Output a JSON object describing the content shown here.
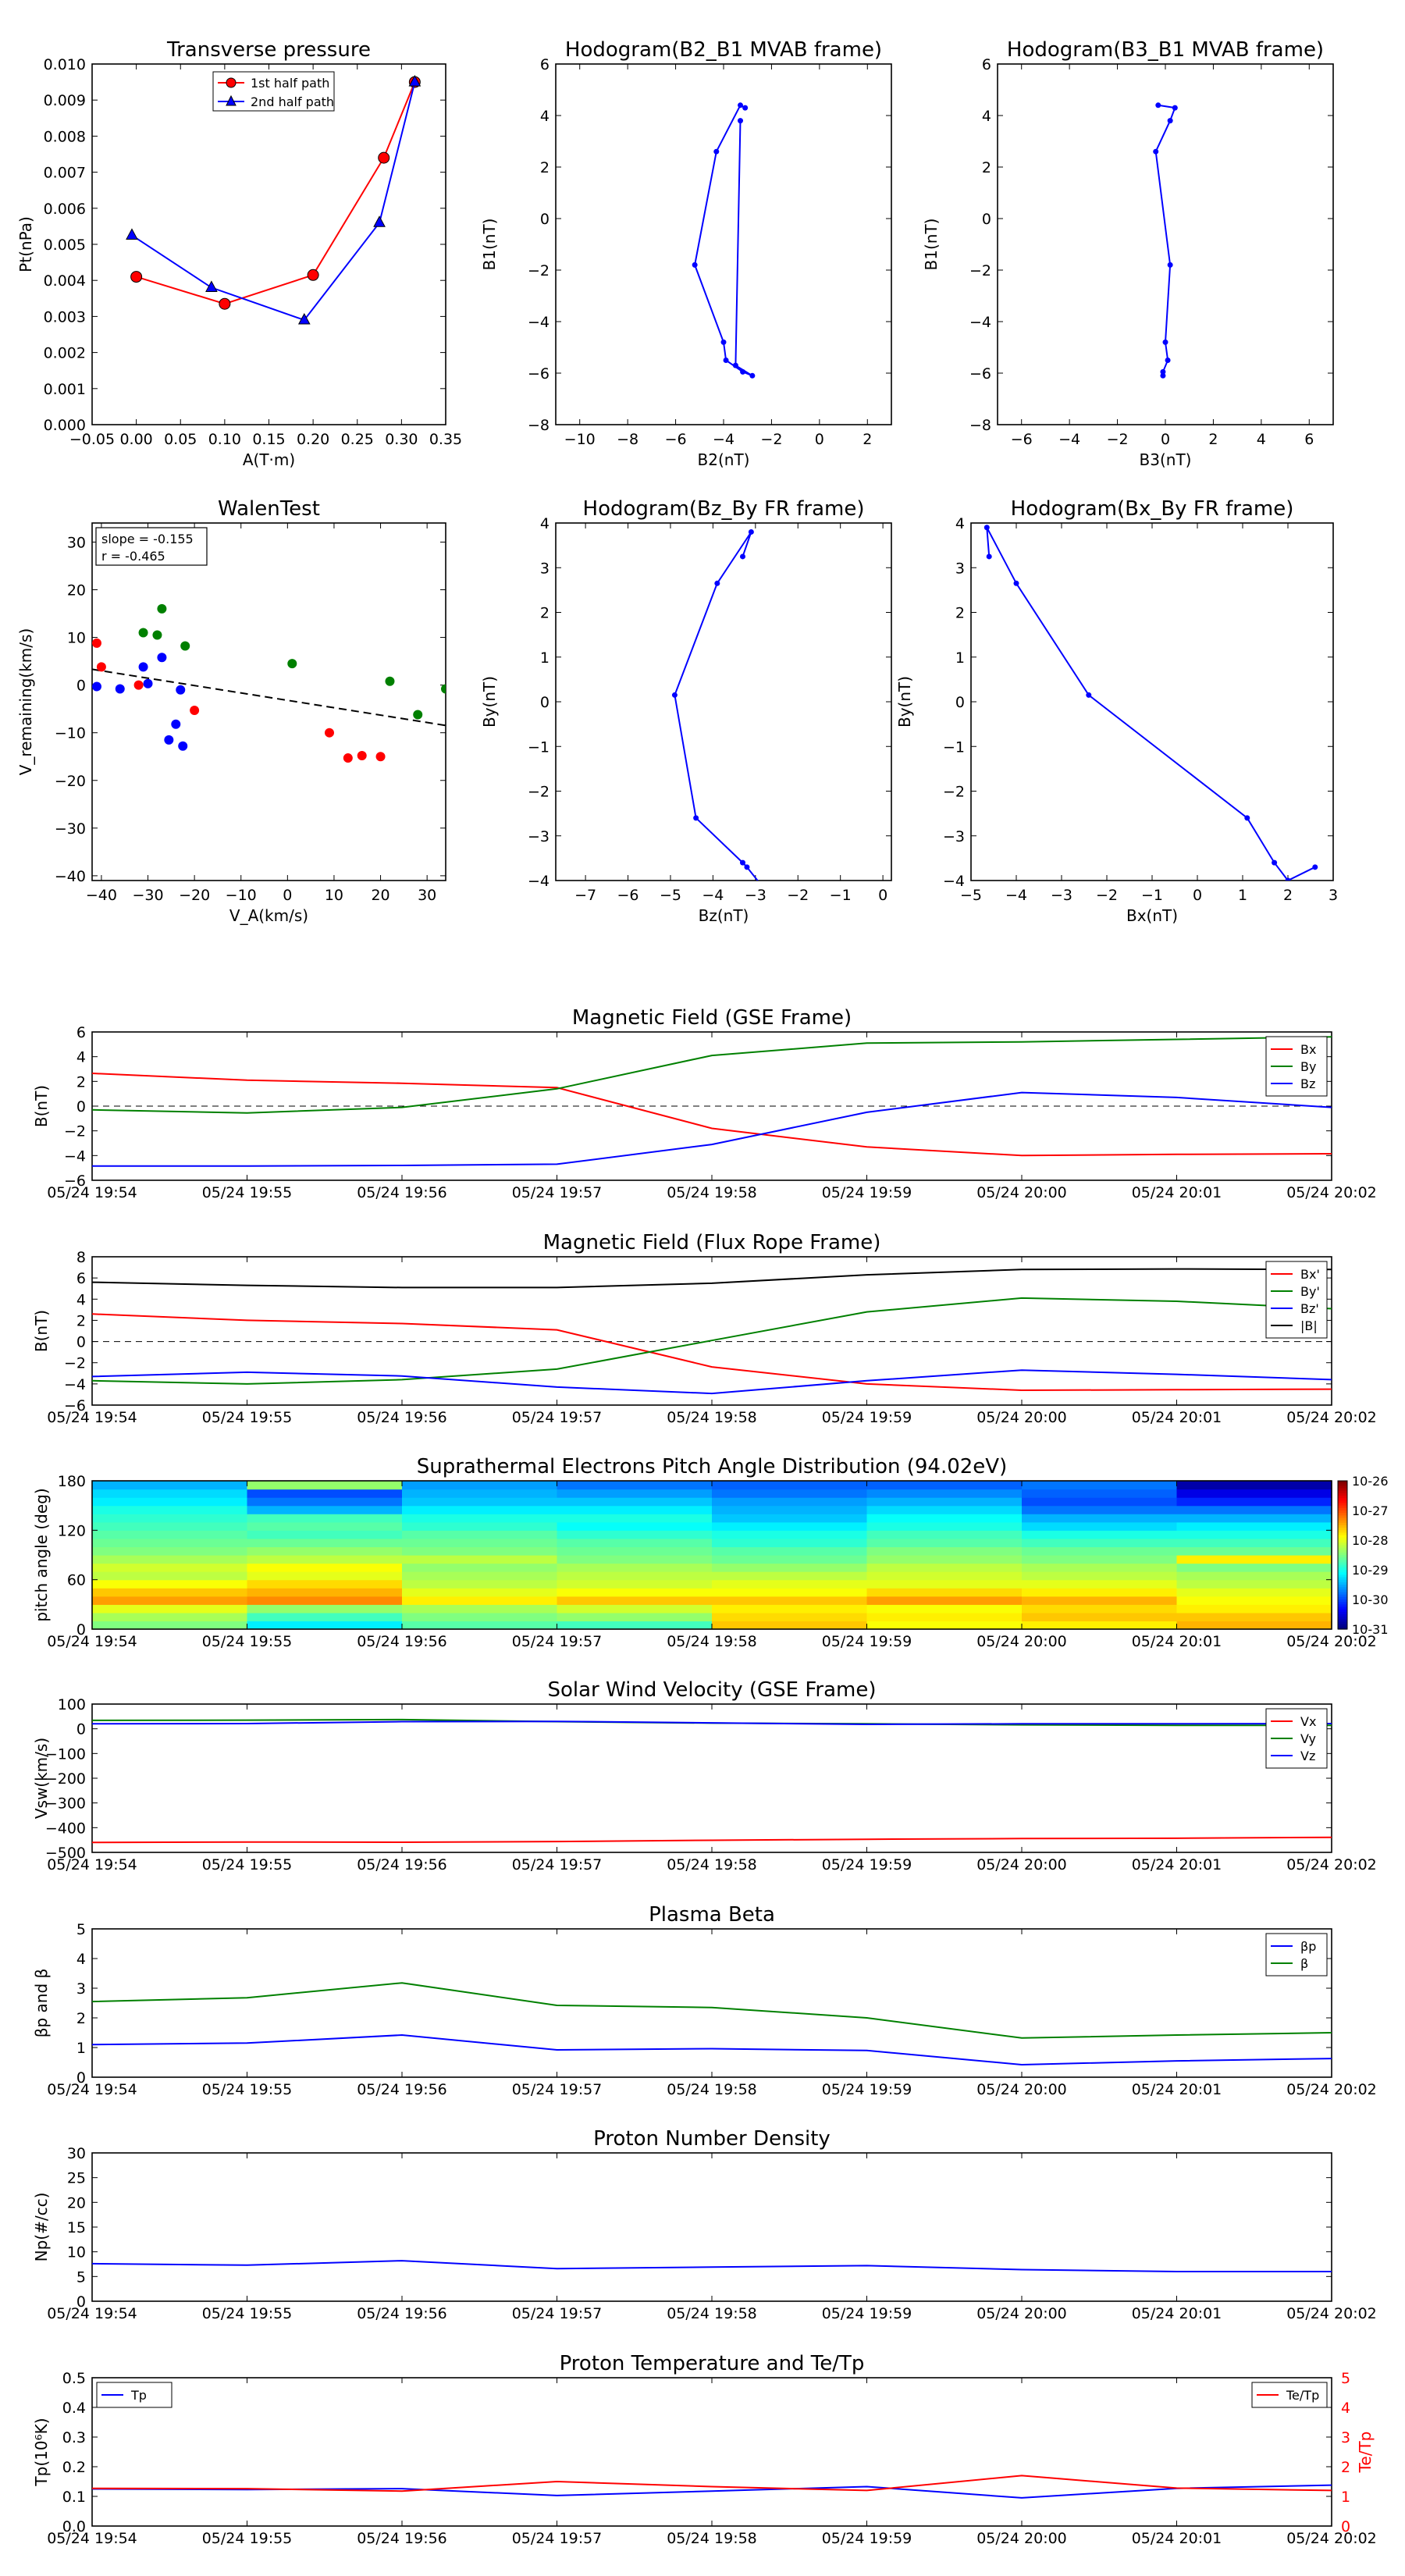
{
  "colors": {
    "red": "#ff0000",
    "green": "#008000",
    "blue": "#0000ff",
    "black": "#000000"
  },
  "chart_data": [
    {
      "id": "transverse-pressure",
      "type": "line",
      "title": "Transverse pressure",
      "xlabel": "A(T·m)",
      "ylabel": "Pt(nPa)",
      "xlim": [
        -0.05,
        0.35
      ],
      "ylim": [
        0.0,
        0.01
      ],
      "xticks": [
        "−0.05",
        "0.00",
        "0.05",
        "0.10",
        "0.15",
        "0.20",
        "0.25",
        "0.30",
        "0.35"
      ],
      "yticks": [
        "0.000",
        "0.001",
        "0.002",
        "0.003",
        "0.004",
        "0.005",
        "0.006",
        "0.007",
        "0.008",
        "0.009",
        "0.010"
      ],
      "legend": "top-center",
      "series": [
        {
          "name": "1st half path",
          "color": "#ff0000",
          "marker": "circle",
          "x": [
            0.0,
            0.1,
            0.2,
            0.28,
            0.315
          ],
          "y": [
            0.0041,
            0.00335,
            0.00415,
            0.0074,
            0.0095
          ]
        },
        {
          "name": "2nd half path",
          "color": "#0000ff",
          "marker": "triangle",
          "x": [
            -0.005,
            0.085,
            0.19,
            0.275,
            0.315
          ],
          "y": [
            0.00525,
            0.0038,
            0.0029,
            0.0056,
            0.0095
          ]
        }
      ]
    },
    {
      "id": "hodogram-b2-b1",
      "type": "line",
      "title": "Hodogram(B2_B1 MVAB frame)",
      "xlabel": "B2(nT)",
      "ylabel": "B1(nT)",
      "xlim": [
        -11,
        3
      ],
      "ylim": [
        -8,
        6
      ],
      "xticks": [
        "−10",
        "−8",
        "−6",
        "−4",
        "−2",
        "0",
        "2"
      ],
      "yticks": [
        "−8",
        "−6",
        "−4",
        "−2",
        "0",
        "2",
        "4",
        "6"
      ],
      "series": [
        {
          "color": "#0000ff",
          "x": [
            -3.1,
            -3.3,
            -4.3,
            -5.2,
            -4.0,
            -3.9,
            -3.2,
            -2.8,
            -3.5,
            -3.3
          ],
          "y": [
            4.3,
            4.4,
            2.6,
            -1.8,
            -4.8,
            -5.5,
            -5.95,
            -6.1,
            -5.7,
            3.8
          ]
        }
      ]
    },
    {
      "id": "hodogram-b3-b1",
      "type": "line",
      "title": "Hodogram(B3_B1 MVAB frame)",
      "xlabel": "B3(nT)",
      "ylabel": "B1(nT)",
      "xlim": [
        -7,
        7
      ],
      "ylim": [
        -8,
        6
      ],
      "xticks": [
        "−6",
        "−4",
        "−2",
        "0",
        "2",
        "4",
        "6"
      ],
      "yticks": [
        "−8",
        "−6",
        "−4",
        "−2",
        "0",
        "2",
        "4",
        "6"
      ],
      "series": [
        {
          "color": "#0000ff",
          "x": [
            -0.3,
            0.4,
            0.2,
            -0.4,
            0.2,
            0.0,
            0.1,
            -0.1,
            -0.1
          ],
          "y": [
            4.4,
            4.3,
            3.8,
            2.6,
            -1.8,
            -4.8,
            -5.5,
            -5.95,
            -6.1
          ]
        }
      ]
    },
    {
      "id": "walen-test",
      "type": "scatter",
      "title": "WalenTest",
      "xlabel": "V_A(km/s)",
      "ylabel": "V_remaining(km/s)",
      "xlim": [
        -42,
        34
      ],
      "ylim": [
        -41,
        34
      ],
      "xticks": [
        "−40",
        "−30",
        "−20",
        "−10",
        "0",
        "10",
        "20",
        "30"
      ],
      "yticks": [
        "−40",
        "−30",
        "−20",
        "−10",
        "0",
        "10",
        "20",
        "30"
      ],
      "annotation": [
        "slope = -0.155",
        "r = -0.465"
      ],
      "fit": {
        "slope": -0.155,
        "intercept": -3.2
      },
      "series": [
        {
          "color": "#008000",
          "x": [
            -27,
            -31,
            -28,
            -22,
            1,
            22,
            28,
            34
          ],
          "y": [
            16,
            11,
            10.5,
            8.2,
            4.5,
            0.8,
            -6.2,
            -0.8
          ]
        },
        {
          "color": "#0000ff",
          "x": [
            -41,
            -36,
            -31,
            -30,
            -27,
            -23,
            -24,
            -22.5,
            -25.5
          ],
          "y": [
            -0.3,
            -0.8,
            3.8,
            0.3,
            5.8,
            -1.0,
            -8.2,
            -12.8,
            -11.5
          ]
        },
        {
          "color": "#ff0000",
          "x": [
            -41,
            -40,
            -32,
            -20,
            9,
            13,
            16,
            20
          ],
          "y": [
            8.8,
            3.8,
            0.0,
            -5.3,
            -10.0,
            -15.3,
            -14.8,
            -15.0
          ]
        }
      ]
    },
    {
      "id": "hodogram-bz-by",
      "type": "line",
      "title": "Hodogram(Bz_By FR frame)",
      "xlabel": "Bz(nT)",
      "ylabel": "By(nT)",
      "xlim": [
        -7.7,
        0.2
      ],
      "ylim": [
        -4,
        4
      ],
      "xticks": [
        "−7",
        "−6",
        "−5",
        "−4",
        "−3",
        "−2",
        "−1",
        "0"
      ],
      "yticks": [
        "−4",
        "−3",
        "−2",
        "−1",
        "0",
        "1",
        "2",
        "3",
        "4"
      ],
      "series": [
        {
          "color": "#0000ff",
          "x": [
            -3.3,
            -3.1,
            -3.9,
            -4.9,
            -4.4,
            -3.3,
            -3.2,
            -2.7
          ],
          "y": [
            3.25,
            3.8,
            2.65,
            0.15,
            -2.6,
            -3.6,
            -3.7,
            -4.3
          ]
        }
      ]
    },
    {
      "id": "hodogram-bx-by",
      "type": "line",
      "title": "Hodogram(Bx_By FR frame)",
      "xlabel": "Bx(nT)",
      "ylabel": "By(nT)",
      "xlim": [
        -5,
        3
      ],
      "ylim": [
        -4,
        4
      ],
      "xticks": [
        "−5",
        "−4",
        "−3",
        "−2",
        "−1",
        "0",
        "1",
        "2",
        "3"
      ],
      "yticks": [
        "−4",
        "−3",
        "−2",
        "−1",
        "0",
        "1",
        "2",
        "3",
        "4"
      ],
      "series": [
        {
          "color": "#0000ff",
          "x": [
            -4.6,
            -4.65,
            -4.0,
            -2.4,
            1.1,
            1.7,
            2.0,
            2.6
          ],
          "y": [
            3.25,
            3.9,
            2.65,
            0.15,
            -2.6,
            -3.6,
            -4.0,
            -3.7
          ]
        }
      ]
    },
    {
      "id": "magnetic-field-gse",
      "type": "line",
      "title": "Magnetic Field (GSE Frame)",
      "ylabel": "B(nT)",
      "ylim": [
        -6,
        6
      ],
      "zero_line": true,
      "legend": "top-right",
      "x": [
        "05/24 19:54",
        "05/24 19:55",
        "05/24 19:56",
        "05/24 19:57",
        "05/24 19:58",
        "05/24 19:59",
        "05/24 20:00",
        "05/24 20:01",
        "05/24 20:02"
      ],
      "yticks": [
        "−6",
        "−4",
        "−2",
        "0",
        "2",
        "4",
        "6"
      ],
      "series": [
        {
          "name": "Bx",
          "color": "#ff0000",
          "values": [
            2.65,
            2.1,
            1.85,
            1.5,
            -1.8,
            -3.3,
            -4.0,
            -3.9,
            -3.85
          ]
        },
        {
          "name": "By",
          "color": "#008000",
          "values": [
            -0.3,
            -0.55,
            -0.1,
            1.4,
            4.1,
            5.1,
            5.2,
            5.4,
            5.6
          ]
        },
        {
          "name": "Bz",
          "color": "#0000ff",
          "values": [
            -4.85,
            -4.85,
            -4.8,
            -4.7,
            -3.1,
            -0.5,
            1.1,
            0.7,
            -0.1
          ]
        }
      ]
    },
    {
      "id": "magnetic-field-fr",
      "type": "line",
      "title": "Magnetic Field (Flux Rope Frame)",
      "ylabel": "B(nT)",
      "ylim": [
        -6,
        8
      ],
      "zero_line": true,
      "legend": "top-right",
      "x": [
        "05/24 19:54",
        "05/24 19:55",
        "05/24 19:56",
        "05/24 19:57",
        "05/24 19:58",
        "05/24 19:59",
        "05/24 20:00",
        "05/24 20:01",
        "05/24 20:02"
      ],
      "yticks": [
        "−6",
        "−4",
        "−2",
        "0",
        "2",
        "4",
        "6",
        "8"
      ],
      "series": [
        {
          "name": "Bx'",
          "color": "#ff0000",
          "values": [
            2.6,
            2.0,
            1.7,
            1.1,
            -2.4,
            -4.0,
            -4.6,
            -4.55,
            -4.5
          ]
        },
        {
          "name": "By'",
          "color": "#008000",
          "values": [
            -3.7,
            -4.0,
            -3.6,
            -2.6,
            0.1,
            2.8,
            4.1,
            3.8,
            3.1
          ]
        },
        {
          "name": "Bz'",
          "color": "#0000ff",
          "values": [
            -3.3,
            -2.9,
            -3.25,
            -4.3,
            -4.9,
            -3.7,
            -2.7,
            -3.1,
            -3.6
          ]
        },
        {
          "name": "|B|",
          "color": "#000000",
          "values": [
            5.6,
            5.3,
            5.1,
            5.1,
            5.5,
            6.3,
            6.8,
            6.85,
            6.8
          ]
        }
      ]
    },
    {
      "id": "pitch-angle",
      "type": "heatmap",
      "title": "Suprathermal Electrons Pitch Angle Distribution (94.02eV)",
      "ylabel": "pitch angle (deg)",
      "ylim": [
        0,
        180
      ],
      "yticks": [
        "0",
        "60",
        "120",
        "180"
      ],
      "x": [
        "05/24 19:54",
        "05/24 19:55",
        "05/24 19:56",
        "05/24 19:57",
        "05/24 19:58",
        "05/24 19:59",
        "05/24 20:00",
        "05/24 20:01",
        "05/24 20:02"
      ],
      "colorbar": {
        "ticks": [
          "10-26",
          "10-27",
          "10-28",
          "10-29",
          "10-30",
          "10-31"
        ],
        "range": [
          -31,
          -26
        ],
        "scale": "log"
      },
      "columns_log10": [
        [
          -28.5,
          -28.3,
          -28.0,
          -27.4,
          -27.6,
          -27.9,
          -28.2,
          -28.1,
          -28.3,
          -28.5,
          -28.6,
          -28.7,
          -28.8,
          -28.9,
          -29.0,
          -29.2,
          -29.3,
          -29.5
        ],
        [
          -29.2,
          -28.8,
          -28.4,
          -27.3,
          -27.5,
          -27.7,
          -28.0,
          -27.9,
          -28.2,
          -28.4,
          -28.6,
          -28.8,
          -28.7,
          -28.8,
          -29.5,
          -29.8,
          -30.0,
          -28.4
        ],
        [
          -28.7,
          -28.5,
          -28.3,
          -27.8,
          -28.0,
          -28.2,
          -28.3,
          -28.4,
          -28.2,
          -28.5,
          -28.6,
          -28.7,
          -28.9,
          -29.0,
          -29.2,
          -29.4,
          -29.5,
          -29.6
        ],
        [
          -28.8,
          -28.4,
          -28.1,
          -27.6,
          -27.9,
          -28.1,
          -28.2,
          -28.3,
          -28.5,
          -28.6,
          -28.7,
          -28.9,
          -29.1,
          -29.0,
          -29.2,
          -29.4,
          -29.6,
          -29.8
        ],
        [
          -27.6,
          -27.7,
          -27.8,
          -27.6,
          -27.9,
          -28.0,
          -28.2,
          -28.4,
          -28.6,
          -28.7,
          -28.9,
          -29.0,
          -29.2,
          -29.4,
          -29.5,
          -29.6,
          -29.8,
          -29.9
        ],
        [
          -27.9,
          -27.8,
          -27.9,
          -27.4,
          -27.7,
          -28.0,
          -28.1,
          -28.2,
          -28.4,
          -28.5,
          -28.7,
          -28.8,
          -29.0,
          -29.1,
          -29.3,
          -29.5,
          -29.7,
          -29.9
        ],
        [
          -27.8,
          -27.6,
          -27.7,
          -27.5,
          -27.8,
          -28.0,
          -28.2,
          -28.3,
          -28.5,
          -28.6,
          -28.8,
          -29.0,
          -29.3,
          -29.5,
          -29.8,
          -30.0,
          -29.9,
          -29.8
        ],
        [
          -27.5,
          -27.6,
          -27.8,
          -27.9,
          -28.0,
          -28.2,
          -28.3,
          -28.5,
          -27.8,
          -28.6,
          -28.8,
          -29.0,
          -29.2,
          -29.5,
          -29.8,
          -30.2,
          -30.5,
          -30.8
        ]
      ]
    },
    {
      "id": "solar-wind-velocity",
      "type": "line",
      "title": "Solar Wind Velocity (GSE Frame)",
      "ylabel": "Vsw(km/s)",
      "ylim": [
        -500,
        100
      ],
      "legend": "top-right",
      "x": [
        "05/24 19:54",
        "05/24 19:55",
        "05/24 19:56",
        "05/24 19:57",
        "05/24 19:58",
        "05/24 19:59",
        "05/24 20:00",
        "05/24 20:01",
        "05/24 20:02"
      ],
      "yticks": [
        "−500",
        "−400",
        "−300",
        "−200",
        "−100",
        "0",
        "100"
      ],
      "series": [
        {
          "name": "Vx",
          "color": "#ff0000",
          "values": [
            -460,
            -458,
            -459,
            -456,
            -451,
            -447,
            -444,
            -443,
            -439
          ]
        },
        {
          "name": "Vy",
          "color": "#008000",
          "values": [
            34,
            35,
            37,
            29,
            23,
            20,
            16,
            14,
            14
          ]
        },
        {
          "name": "Vz",
          "color": "#0000ff",
          "values": [
            20,
            21,
            29,
            30,
            24,
            18,
            20,
            20,
            21
          ]
        }
      ]
    },
    {
      "id": "plasma-beta",
      "type": "line",
      "title": "Plasma Beta",
      "ylabel": "βp and β",
      "ylim": [
        0,
        5
      ],
      "legend": "top-right",
      "x": [
        "05/24 19:54",
        "05/24 19:55",
        "05/24 19:56",
        "05/24 19:57",
        "05/24 19:58",
        "05/24 19:59",
        "05/24 20:00",
        "05/24 20:01",
        "05/24 20:02"
      ],
      "yticks": [
        "0",
        "1",
        "2",
        "3",
        "4",
        "5"
      ],
      "series": [
        {
          "name": "βp",
          "color": "#0000ff",
          "values": [
            1.1,
            1.15,
            1.42,
            0.92,
            0.96,
            0.9,
            0.42,
            0.55,
            0.63
          ]
        },
        {
          "name": "β",
          "color": "#008000",
          "values": [
            2.55,
            2.68,
            3.18,
            2.42,
            2.35,
            2.0,
            1.32,
            1.42,
            1.5
          ]
        }
      ]
    },
    {
      "id": "proton-density",
      "type": "line",
      "title": "Proton Number Density",
      "ylabel": "Np(#/cc)",
      "ylim": [
        0,
        30
      ],
      "x": [
        "05/24 19:54",
        "05/24 19:55",
        "05/24 19:56",
        "05/24 19:57",
        "05/24 19:58",
        "05/24 19:59",
        "05/24 20:00",
        "05/24 20:01",
        "05/24 20:02"
      ],
      "yticks": [
        "0",
        "5",
        "10",
        "15",
        "20",
        "25",
        "30"
      ],
      "series": [
        {
          "color": "#0000ff",
          "values": [
            7.6,
            7.3,
            8.2,
            6.6,
            6.9,
            7.2,
            6.4,
            6.0,
            6.0
          ]
        }
      ]
    },
    {
      "id": "proton-temperature",
      "type": "line",
      "title": "Proton Temperature and Te/Tp",
      "ylabel": "Tp(10⁶K)",
      "ylim": [
        0,
        0.5
      ],
      "y2label": "Te/Tp",
      "y2lim": [
        0,
        5
      ],
      "x": [
        "05/24 19:54",
        "05/24 19:55",
        "05/24 19:56",
        "05/24 19:57",
        "05/24 19:58",
        "05/24 19:59",
        "05/24 20:00",
        "05/24 20:01",
        "05/24 20:02"
      ],
      "yticks": [
        "0.0",
        "0.1",
        "0.2",
        "0.3",
        "0.4",
        "0.5"
      ],
      "y2ticks": [
        "0",
        "1",
        "2",
        "3",
        "4",
        "5"
      ],
      "series": [
        {
          "name": "Tp",
          "color": "#0000ff",
          "axis": "left",
          "legend": "top-left",
          "values": [
            0.125,
            0.123,
            0.126,
            0.103,
            0.118,
            0.133,
            0.095,
            0.127,
            0.138
          ]
        },
        {
          "name": "Te/Tp",
          "color": "#ff0000",
          "axis": "right",
          "legend": "top-right",
          "values": [
            1.27,
            1.26,
            1.18,
            1.5,
            1.33,
            1.2,
            1.7,
            1.28,
            1.2
          ]
        }
      ]
    }
  ]
}
